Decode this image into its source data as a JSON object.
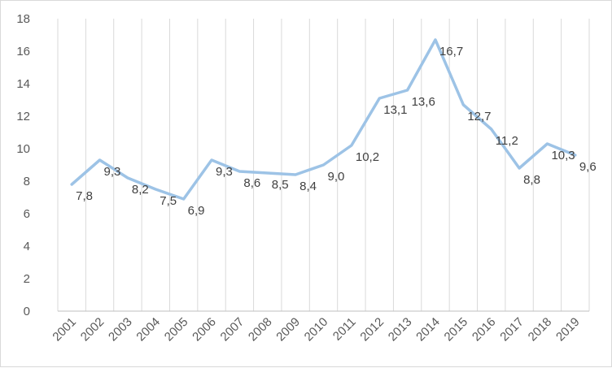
{
  "chart_data": {
    "type": "line",
    "title": "",
    "xlabel": "",
    "ylabel": "",
    "categories": [
      "2001",
      "2002",
      "2003",
      "2004",
      "2005",
      "2006",
      "2007",
      "2008",
      "2009",
      "2010",
      "2011",
      "2012",
      "2013",
      "2014",
      "2015",
      "2016",
      "2017",
      "2018",
      "2019"
    ],
    "series": [
      {
        "values": [
          7.8,
          9.3,
          8.2,
          7.5,
          6.9,
          9.3,
          8.6,
          8.5,
          8.4,
          9.0,
          10.2,
          13.1,
          13.6,
          16.7,
          12.7,
          11.2,
          8.8,
          10.3,
          9.6
        ],
        "data_labels": [
          "7,8",
          "9,3",
          "8,2",
          "7,5",
          "6,9",
          "9,3",
          "8,6",
          "8,5",
          "8,4",
          "9,0",
          "10,2",
          "13,1",
          "13,6",
          "16,7",
          "12,7",
          "11,2",
          "8,8",
          "10,3",
          "9,6"
        ],
        "color": "#9dc3e6"
      }
    ],
    "y_ticks": [
      "0",
      "2",
      "4",
      "6",
      "8",
      "10",
      "12",
      "14",
      "16",
      "18"
    ],
    "ylim": [
      0,
      18
    ],
    "grid": "vertical",
    "legend": "none",
    "colors": {
      "line": "#9dc3e6",
      "grid": "#d9d9d9",
      "axis": "#bfbfbf",
      "text": "#595959"
    }
  }
}
